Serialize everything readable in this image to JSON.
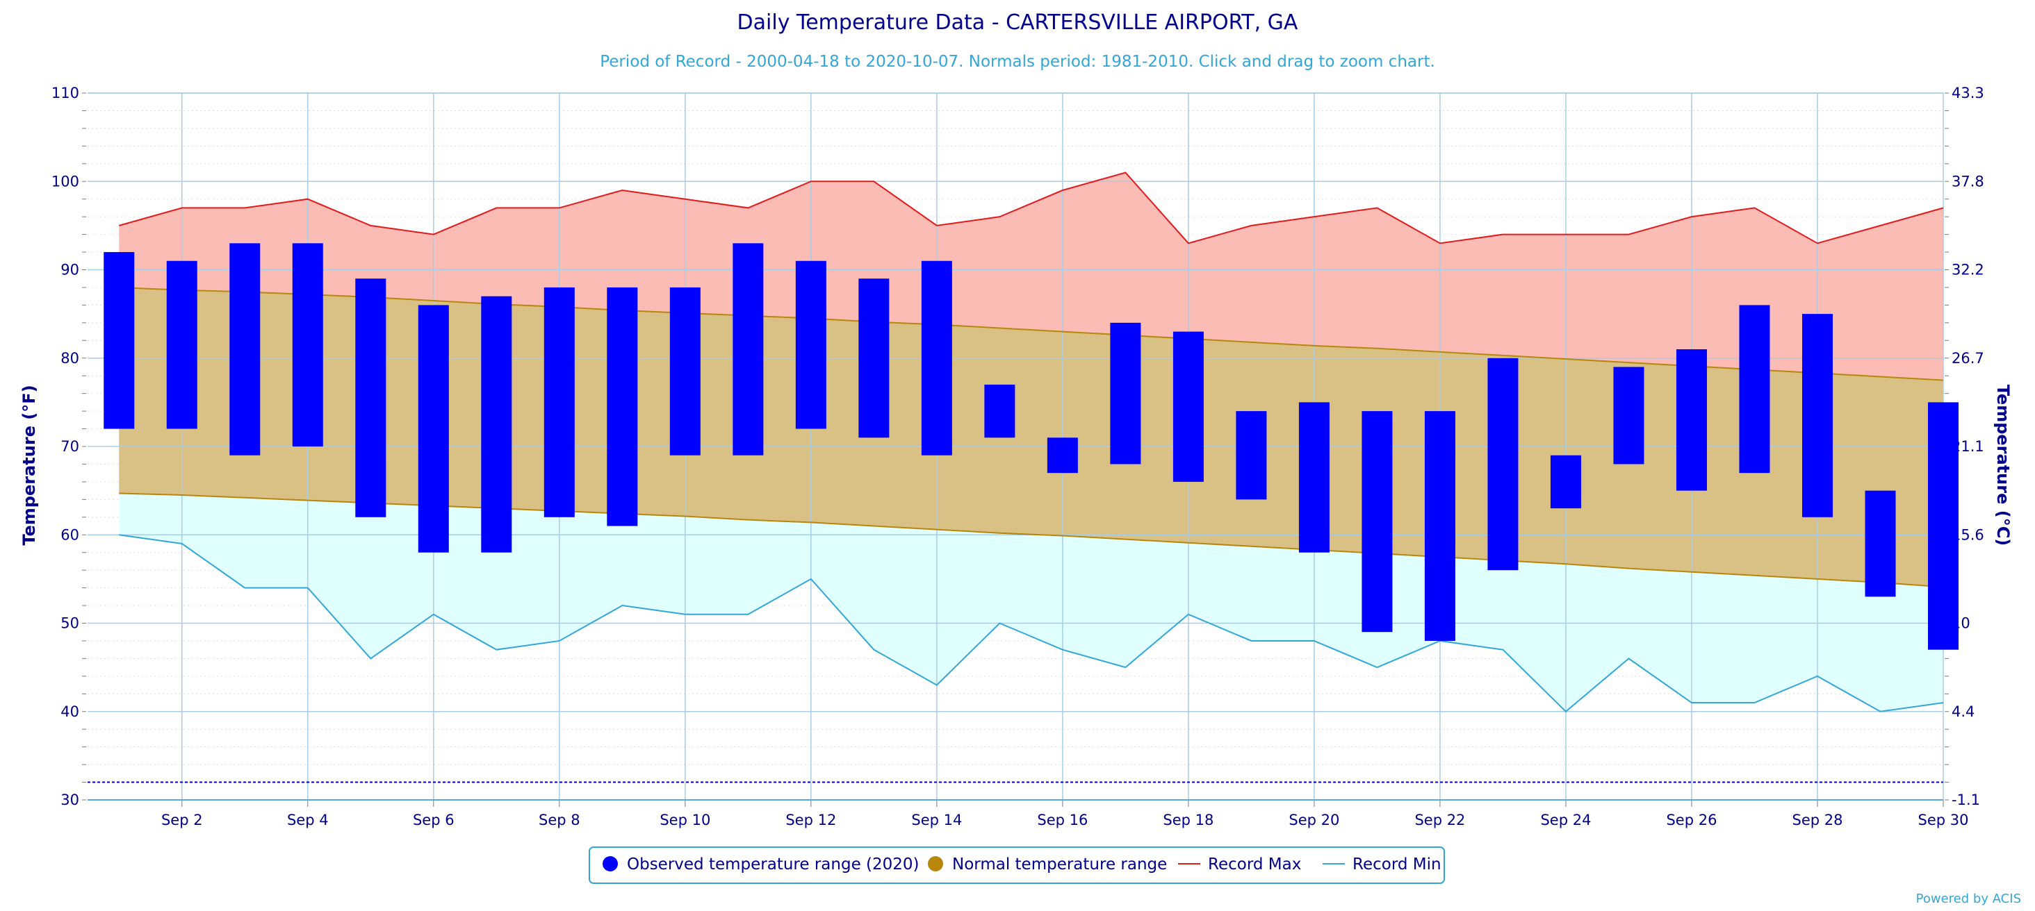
{
  "chart_data": {
    "type": "bar",
    "title": "Daily Temperature Data - CARTERSVILLE AIRPORT, GA",
    "subtitle": "Period of Record - 2000-04-18 to 2020-10-07. Normals period: 1981-2010. Click and drag to zoom chart.",
    "ylabel_left": "Temperature (°F)",
    "ylabel_right": "Temperature (°C)",
    "ylim": [
      30,
      110
    ],
    "xlim": [
      0.5,
      30
    ],
    "y_ticks_left": [
      "110",
      "100",
      "90",
      "80",
      "70",
      "60",
      "50",
      "40",
      "30"
    ],
    "y_ticks_right": [
      "43.3",
      "37.8",
      "32.2",
      "26.7",
      "21.1",
      "15.6",
      "10",
      "4.4",
      "-1.1"
    ],
    "y_tick_values": [
      110,
      100,
      90,
      80,
      70,
      60,
      50,
      40,
      30
    ],
    "x_tick_labels": [
      "Sep 2",
      "Sep 4",
      "Sep 6",
      "Sep 8",
      "Sep 10",
      "Sep 12",
      "Sep 14",
      "Sep 16",
      "Sep 18",
      "Sep 20",
      "Sep 22",
      "Sep 24",
      "Sep 26",
      "Sep 28",
      "Sep 30"
    ],
    "x_tick_days": [
      2,
      4,
      6,
      8,
      10,
      12,
      14,
      16,
      18,
      20,
      22,
      24,
      26,
      28,
      30
    ],
    "freezing_line": 32,
    "days": [
      1,
      2,
      3,
      4,
      5,
      6,
      7,
      8,
      9,
      10,
      11,
      12,
      13,
      14,
      15,
      16,
      17,
      18,
      19,
      20,
      21,
      22,
      23,
      24,
      25,
      26,
      27,
      28,
      29,
      30
    ],
    "series": [
      {
        "name": "Observed temperature range (2020)",
        "color": "#0000ff",
        "high": [
          92,
          91,
          93,
          93,
          89,
          86,
          87,
          88,
          88,
          88,
          93,
          91,
          89,
          91,
          77,
          71,
          84,
          83,
          74,
          75,
          74,
          74,
          80,
          69,
          79,
          81,
          86,
          85,
          65,
          75
        ],
        "low": [
          72,
          72,
          69,
          70,
          62,
          58,
          58,
          62,
          61,
          69,
          69,
          72,
          71,
          69,
          71,
          67,
          68,
          66,
          64,
          58,
          49,
          48,
          56,
          63,
          68,
          65,
          67,
          62,
          53,
          47
        ]
      },
      {
        "name": "Normal temperature range",
        "color": "#b8860b",
        "fill": "#d9c084",
        "high": [
          88,
          87.7,
          87.5,
          87.2,
          86.9,
          86.5,
          86.1,
          85.8,
          85.4,
          85.1,
          84.8,
          84.5,
          84.1,
          83.8,
          83.4,
          83,
          82.6,
          82.2,
          81.8,
          81.4,
          81.1,
          80.7,
          80.3,
          79.9,
          79.5,
          79.1,
          78.7,
          78.3,
          77.9,
          77.5
        ],
        "low": [
          64.7,
          64.5,
          64.2,
          63.9,
          63.6,
          63.3,
          63,
          62.7,
          62.4,
          62.1,
          61.7,
          61.4,
          61,
          60.6,
          60.2,
          59.9,
          59.5,
          59.1,
          58.7,
          58.3,
          57.9,
          57.5,
          57.1,
          56.7,
          56.2,
          55.8,
          55.4,
          55,
          54.6,
          54.1
        ]
      },
      {
        "name": "Record Max",
        "color": "#e31a1c",
        "fill": "#fbbcb6",
        "values": [
          95,
          97,
          97,
          98,
          95,
          94,
          97,
          97,
          99,
          98,
          97,
          100,
          100,
          95,
          96,
          99,
          101,
          93,
          95,
          96,
          97,
          93,
          94,
          94,
          94,
          96,
          97,
          93,
          95,
          97
        ]
      },
      {
        "name": "Record Min",
        "color": "#33a6d8",
        "fill": "#e0ffff",
        "values": [
          60,
          59,
          54,
          54,
          46,
          51,
          47,
          48,
          52,
          51,
          51,
          55,
          47,
          43,
          50,
          47,
          45,
          51,
          48,
          48,
          45,
          48,
          47,
          40,
          46,
          41,
          41,
          44,
          40,
          41
        ]
      }
    ],
    "legend_position": "bottom-center",
    "grid": true
  },
  "credit": "Powered by ACIS"
}
